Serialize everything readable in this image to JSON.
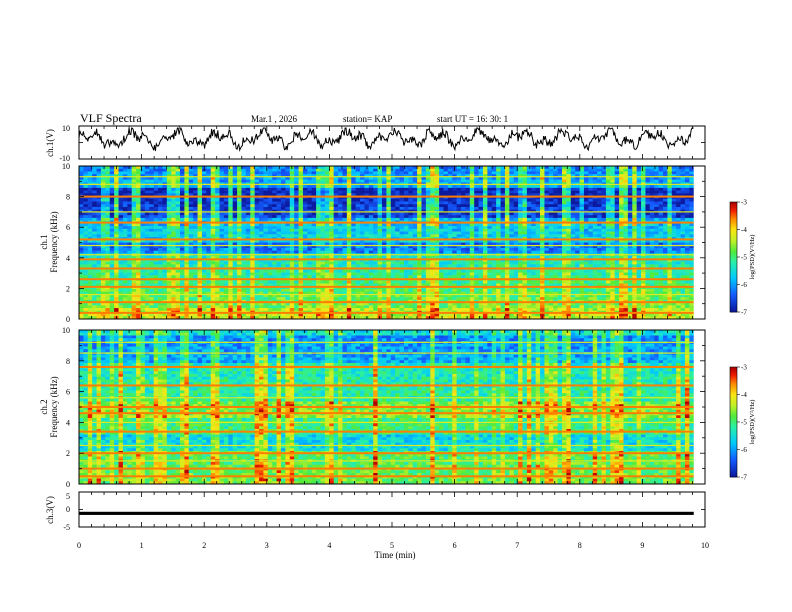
{
  "header": {
    "title": "VLF Spectra",
    "date": "Mar.1   , 2026",
    "station": "station= KAP",
    "start": "start  UT  =    16: 30: 1"
  },
  "colors": {
    "spectro_low": "#0c1aa0",
    "spectro_high": "#b00000",
    "trace": "#000000"
  },
  "chart_data": [
    {
      "id": "ch1-waveform",
      "type": "line",
      "ylabel": "ch.1(V)",
      "ylim": [
        -10,
        10
      ],
      "y_tick_labels": [
        "10",
        "-10"
      ],
      "xlim": [
        0,
        10
      ],
      "data_end_min": 9.82
    },
    {
      "id": "ch1-spectrogram",
      "type": "heatmap",
      "ylabel_line1": "ch.1",
      "ylabel_line2": "Frequency  (kHz)",
      "ylim": [
        0,
        10
      ],
      "y_ticks": [
        0,
        2,
        4,
        6,
        8,
        10
      ],
      "y_tick_labels": [
        "0",
        "2",
        "4",
        "6",
        "8",
        "10"
      ],
      "color_scale_label": "log(PSD)(V²/Hz)",
      "color_range": [
        -7,
        -3
      ],
      "color_ticks": [
        -3,
        -4,
        -5,
        -6,
        -7
      ],
      "color_tick_labels": [
        "-3",
        "-4",
        "-5",
        "-6",
        "-7"
      ],
      "bands_khz": [
        0.4,
        1.1,
        2.1,
        2.6,
        3.3,
        3.9,
        5.2,
        6.3,
        8.0
      ],
      "weak_bands_khz": [
        1.6,
        4.2,
        4.8,
        7.0,
        8.8,
        9.3
      ]
    },
    {
      "id": "ch2-spectrogram",
      "type": "heatmap",
      "ylabel_line1": "ch.2",
      "ylabel_line2": "Frequency  (kHz)",
      "ylim": [
        0,
        10
      ],
      "y_ticks": [
        0,
        2,
        4,
        6,
        8,
        10
      ],
      "y_tick_labels": [
        "0",
        "2",
        "4",
        "6",
        "8",
        "10"
      ],
      "color_scale_label": "log(PSD)(V²/Hz)",
      "color_range": [
        -7,
        -3
      ],
      "color_ticks": [
        -3,
        -4,
        -5,
        -6,
        -7
      ],
      "color_tick_labels": [
        "-3",
        "-4",
        "-5",
        "-6",
        "-7"
      ],
      "bands_khz": [
        0.5,
        1.0,
        2.0,
        3.4,
        4.6,
        5.0,
        6.4,
        7.6
      ],
      "weak_bands_khz": [
        1.5,
        2.5,
        4.0,
        5.6,
        8.5,
        9.2
      ]
    },
    {
      "id": "ch3-signal",
      "type": "line",
      "ylabel": "ch.3(V)",
      "ylim": [
        -5,
        5
      ],
      "y_tick_labels": [
        "5",
        "0",
        "-5"
      ],
      "constant_value": -1.1,
      "trace_thickness_v": 0.9
    }
  ],
  "x_axis": {
    "xlabel": "Time  (min)",
    "xlim": [
      0,
      10
    ],
    "ticks": [
      0,
      1,
      2,
      3,
      4,
      5,
      6,
      7,
      8,
      9,
      10
    ],
    "tick_labels": [
      "0",
      "1",
      "2",
      "3",
      "4",
      "5",
      "6",
      "7",
      "8",
      "9",
      "10"
    ],
    "data_end_min": 9.82
  }
}
